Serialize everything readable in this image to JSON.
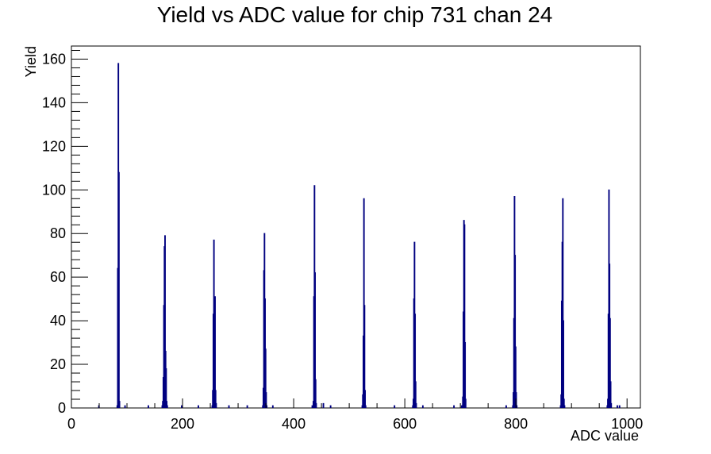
{
  "chart_data": {
    "type": "histogram",
    "title": "Yield vs ADC value for chip 731 chan 24",
    "xlabel": "ADC value",
    "ylabel": "Yield",
    "xlim": [
      0,
      1024
    ],
    "ylim": [
      0,
      166
    ],
    "x_ticks": [
      0,
      200,
      400,
      600,
      800,
      1000
    ],
    "y_ticks": [
      0,
      20,
      40,
      60,
      80,
      100,
      120,
      140,
      160
    ],
    "x_tick_labels": [
      "0",
      "200",
      "400",
      "600",
      "800",
      "1000"
    ],
    "y_tick_labels": [
      "0",
      "20",
      "40",
      "60",
      "80",
      "100",
      "120",
      "140",
      "160"
    ],
    "grid": false,
    "line_color": "#000080",
    "bins": [
      {
        "x": 49,
        "y": 1
      },
      {
        "x": 82,
        "y": 1
      },
      {
        "x": 83,
        "y": 64
      },
      {
        "x": 84,
        "y": 158
      },
      {
        "x": 85,
        "y": 108
      },
      {
        "x": 86,
        "y": 3
      },
      {
        "x": 96,
        "y": 1
      },
      {
        "x": 138,
        "y": 1
      },
      {
        "x": 163,
        "y": 1
      },
      {
        "x": 164,
        "y": 3
      },
      {
        "x": 165,
        "y": 14
      },
      {
        "x": 166,
        "y": 47
      },
      {
        "x": 167,
        "y": 74
      },
      {
        "x": 168,
        "y": 79
      },
      {
        "x": 169,
        "y": 26
      },
      {
        "x": 170,
        "y": 18
      },
      {
        "x": 171,
        "y": 3
      },
      {
        "x": 172,
        "y": 1
      },
      {
        "x": 198,
        "y": 1
      },
      {
        "x": 228,
        "y": 1
      },
      {
        "x": 253,
        "y": 1
      },
      {
        "x": 254,
        "y": 8
      },
      {
        "x": 255,
        "y": 43
      },
      {
        "x": 256,
        "y": 77
      },
      {
        "x": 257,
        "y": 32
      },
      {
        "x": 258,
        "y": 51
      },
      {
        "x": 259,
        "y": 8
      },
      {
        "x": 260,
        "y": 2
      },
      {
        "x": 283,
        "y": 1
      },
      {
        "x": 316,
        "y": 1
      },
      {
        "x": 344,
        "y": 1
      },
      {
        "x": 345,
        "y": 9
      },
      {
        "x": 346,
        "y": 63
      },
      {
        "x": 347,
        "y": 80
      },
      {
        "x": 348,
        "y": 50
      },
      {
        "x": 349,
        "y": 27
      },
      {
        "x": 350,
        "y": 7
      },
      {
        "x": 351,
        "y": 1
      },
      {
        "x": 362,
        "y": 1
      },
      {
        "x": 433,
        "y": 1
      },
      {
        "x": 435,
        "y": 3
      },
      {
        "x": 436,
        "y": 51
      },
      {
        "x": 437,
        "y": 102
      },
      {
        "x": 438,
        "y": 62
      },
      {
        "x": 439,
        "y": 13
      },
      {
        "x": 440,
        "y": 2
      },
      {
        "x": 453,
        "y": 2
      },
      {
        "x": 466,
        "y": 1
      },
      {
        "x": 523,
        "y": 1
      },
      {
        "x": 524,
        "y": 6
      },
      {
        "x": 525,
        "y": 33
      },
      {
        "x": 526,
        "y": 96
      },
      {
        "x": 527,
        "y": 47
      },
      {
        "x": 528,
        "y": 8
      },
      {
        "x": 529,
        "y": 1
      },
      {
        "x": 581,
        "y": 1
      },
      {
        "x": 614,
        "y": 1
      },
      {
        "x": 615,
        "y": 4
      },
      {
        "x": 616,
        "y": 50
      },
      {
        "x": 617,
        "y": 76
      },
      {
        "x": 618,
        "y": 43
      },
      {
        "x": 619,
        "y": 12
      },
      {
        "x": 620,
        "y": 2
      },
      {
        "x": 632,
        "y": 1
      },
      {
        "x": 688,
        "y": 1
      },
      {
        "x": 702,
        "y": 1
      },
      {
        "x": 704,
        "y": 5
      },
      {
        "x": 705,
        "y": 44
      },
      {
        "x": 706,
        "y": 86
      },
      {
        "x": 707,
        "y": 84
      },
      {
        "x": 708,
        "y": 30
      },
      {
        "x": 709,
        "y": 4
      },
      {
        "x": 782,
        "y": 1
      },
      {
        "x": 794,
        "y": 1
      },
      {
        "x": 795,
        "y": 7
      },
      {
        "x": 796,
        "y": 41
      },
      {
        "x": 797,
        "y": 97
      },
      {
        "x": 798,
        "y": 70
      },
      {
        "x": 799,
        "y": 28
      },
      {
        "x": 800,
        "y": 7
      },
      {
        "x": 801,
        "y": 1
      },
      {
        "x": 880,
        "y": 1
      },
      {
        "x": 881,
        "y": 6
      },
      {
        "x": 882,
        "y": 49
      },
      {
        "x": 883,
        "y": 76
      },
      {
        "x": 884,
        "y": 96
      },
      {
        "x": 885,
        "y": 40
      },
      {
        "x": 886,
        "y": 4
      },
      {
        "x": 887,
        "y": 1
      },
      {
        "x": 964,
        "y": 1
      },
      {
        "x": 965,
        "y": 4
      },
      {
        "x": 966,
        "y": 43
      },
      {
        "x": 967,
        "y": 100
      },
      {
        "x": 968,
        "y": 66
      },
      {
        "x": 969,
        "y": 41
      },
      {
        "x": 970,
        "y": 12
      },
      {
        "x": 971,
        "y": 2
      },
      {
        "x": 982,
        "y": 1
      },
      {
        "x": 986,
        "y": 1
      }
    ]
  }
}
